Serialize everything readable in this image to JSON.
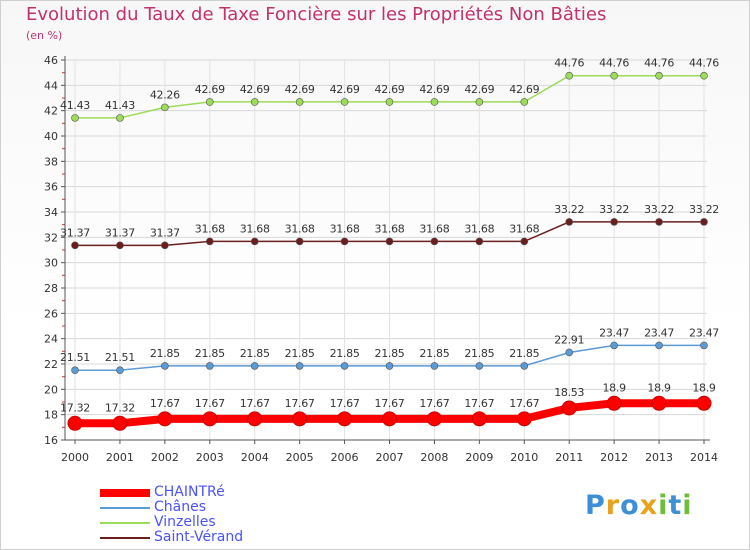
{
  "header": {
    "title": "Evolution du Taux de Taxe Foncière sur les Propriétés Non Bâties",
    "unit": "(en %)"
  },
  "chart_data": {
    "type": "line",
    "title": "Evolution du Taux de Taxe Foncière sur les Propriétés Non Bâties",
    "ylabel": "(en %)",
    "xlabel": "",
    "ylim": [
      16,
      46
    ],
    "ytick_step": 2,
    "grid": true,
    "legend_position": "bottom-left",
    "categories": [
      "2000",
      "2001",
      "2002",
      "2003",
      "2004",
      "2005",
      "2006",
      "2007",
      "2008",
      "2009",
      "2010",
      "2011",
      "2012",
      "2013",
      "2014"
    ],
    "series": [
      {
        "name": "CHAINTRé",
        "color": "#ff0000",
        "values": [
          17.32,
          17.32,
          17.67,
          17.67,
          17.67,
          17.67,
          17.67,
          17.67,
          17.67,
          17.67,
          17.67,
          18.53,
          18.9,
          18.9,
          18.9
        ],
        "labels": [
          "17.32",
          "17.32",
          "17.67",
          "17.67",
          "17.67",
          "17.67",
          "17.67",
          "17.67",
          "17.67",
          "17.67",
          "17.67",
          "18.53",
          "18.9",
          "18.9",
          "18.9"
        ]
      },
      {
        "name": "Chânes",
        "color": "#5b9bd5",
        "values": [
          21.51,
          21.51,
          21.85,
          21.85,
          21.85,
          21.85,
          21.85,
          21.85,
          21.85,
          21.85,
          21.85,
          22.91,
          23.47,
          23.47,
          23.47
        ],
        "labels": [
          "21.51",
          "21.51",
          "21.85",
          "21.85",
          "21.85",
          "21.85",
          "21.85",
          "21.85",
          "21.85",
          "21.85",
          "21.85",
          "22.91",
          "23.47",
          "23.47",
          "23.47"
        ]
      },
      {
        "name": "Vinzelles",
        "color": "#9ddb5a",
        "values": [
          41.43,
          41.43,
          42.26,
          42.69,
          42.69,
          42.69,
          42.69,
          42.69,
          42.69,
          42.69,
          42.69,
          44.76,
          44.76,
          44.76,
          44.76
        ],
        "labels": [
          "41.43",
          "41.43",
          "42.26",
          "42.69",
          "42.69",
          "42.69",
          "42.69",
          "42.69",
          "42.69",
          "42.69",
          "42.69",
          "44.76",
          "44.76",
          "44.76",
          "44.76"
        ]
      },
      {
        "name": "Saint-Vérand",
        "color": "#6b1e1e",
        "values": [
          31.37,
          31.37,
          31.37,
          31.68,
          31.68,
          31.68,
          31.68,
          31.68,
          31.68,
          31.68,
          31.68,
          33.22,
          33.22,
          33.22,
          33.22
        ],
        "labels": [
          "31.37",
          "31.37",
          "31.37",
          "31.68",
          "31.68",
          "31.68",
          "31.68",
          "31.68",
          "31.68",
          "31.68",
          "31.68",
          "33.22",
          "33.22",
          "33.22",
          "33.22"
        ]
      }
    ]
  },
  "legend": {
    "items": [
      {
        "label": "CHAINTRé",
        "color": "#ff0000"
      },
      {
        "label": "Chânes",
        "color": "#5b9bd5"
      },
      {
        "label": "Vinzelles",
        "color": "#9ddb5a"
      },
      {
        "label": "Saint-Vérand",
        "color": "#6b1e1e"
      }
    ]
  },
  "logo": {
    "letters": [
      "P",
      "r",
      "o",
      "x",
      "i",
      "t",
      "i"
    ],
    "colors": [
      "#3d8fd6",
      "#e8a21c",
      "#3d8fd6",
      "#e8a21c",
      "#6cbf3a",
      "#3d8fd6",
      "#6cbf3a"
    ]
  }
}
